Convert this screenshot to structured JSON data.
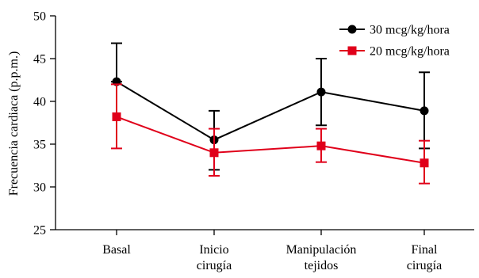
{
  "chart_data": {
    "type": "line",
    "title": "",
    "xlabel": "",
    "ylabel": "Frecuencia cardiaca (p.p.m.)",
    "ylim": [
      25,
      50
    ],
    "yticks": [
      25,
      30,
      35,
      40,
      45,
      50
    ],
    "grid": false,
    "legend_position": "top-right",
    "categories": [
      [
        "Basal"
      ],
      [
        "Inicio",
        "cirugía"
      ],
      [
        "Manipulación",
        "tejidos"
      ],
      [
        "Final",
        "cirugía"
      ]
    ],
    "series": [
      {
        "name": "30 mcg/kg/hora",
        "color": "#000000",
        "marker": "circle",
        "values": [
          42.3,
          35.5,
          41.1,
          38.9
        ],
        "error_upper": [
          46.8,
          38.9,
          45.0,
          43.4
        ],
        "error_lower": [
          42.3,
          32.0,
          37.2,
          34.5
        ]
      },
      {
        "name": "20 mcg/kg/hora",
        "color": "#e0001a",
        "marker": "square",
        "values": [
          38.2,
          34.0,
          34.8,
          32.8
        ],
        "error_upper": [
          42.0,
          36.8,
          36.8,
          35.4
        ],
        "error_lower": [
          34.5,
          31.3,
          32.9,
          30.4
        ]
      }
    ]
  }
}
